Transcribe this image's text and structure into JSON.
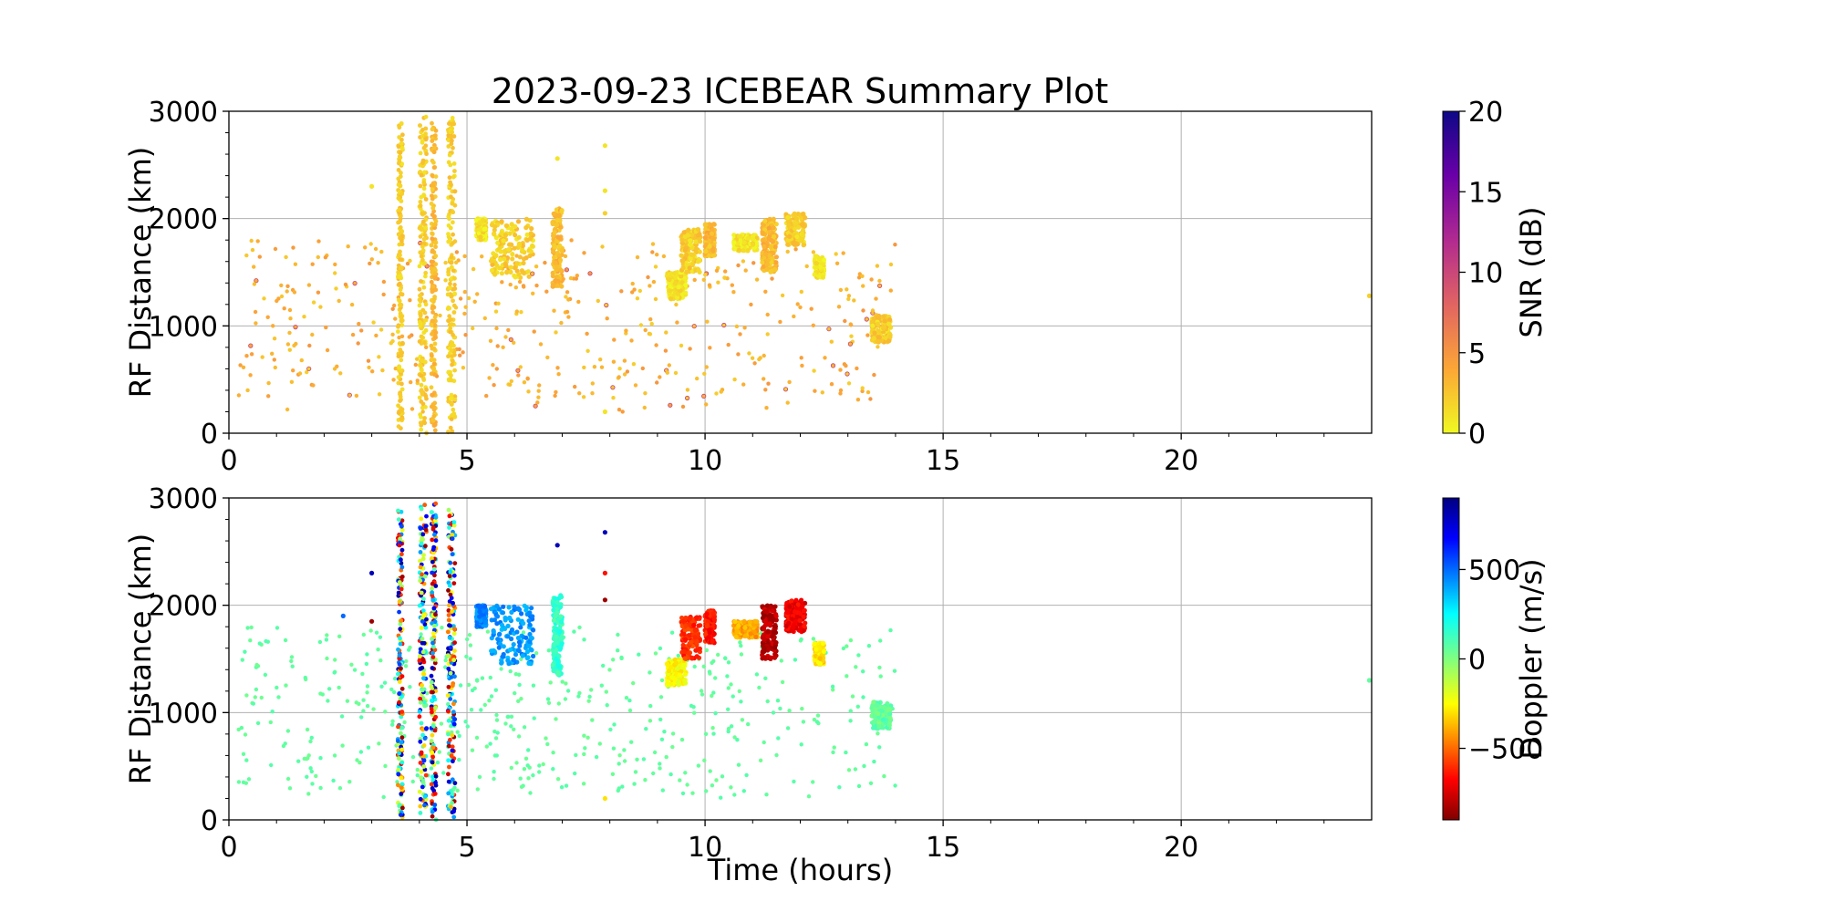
{
  "chart_data": [
    {
      "type": "scatter",
      "panel": "top",
      "title": "2023-09-23 ICEBEAR Summary Plot",
      "xlabel": "",
      "ylabel": "RF Distance (km)",
      "xlim": [
        0,
        24
      ],
      "ylim": [
        0,
        3000
      ],
      "xticks": [
        "0",
        "5",
        "10",
        "15",
        "20"
      ],
      "yticks": [
        "0",
        "1000",
        "2000",
        "3000"
      ],
      "grid": true,
      "color_variable": "SNR",
      "colorbar": {
        "label": "SNR (dB)",
        "range": [
          0,
          20
        ],
        "ticks": [
          "0",
          "5",
          "10",
          "15",
          "20"
        ],
        "colormap": "plasma_r"
      },
      "clusters": [
        {
          "x": [
            3.55,
            3.65
          ],
          "y": [
            0,
            2900
          ],
          "value": 1
        },
        {
          "x": [
            4.0,
            4.15
          ],
          "y": [
            0,
            2950
          ],
          "value": 1
        },
        {
          "x": [
            4.25,
            4.35
          ],
          "y": [
            0,
            2950
          ],
          "value": 2
        },
        {
          "x": [
            4.6,
            4.75
          ],
          "y": [
            0,
            2950
          ],
          "value": 1
        },
        {
          "x": [
            5.2,
            5.4
          ],
          "y": [
            1800,
            2000
          ],
          "value": 1
        },
        {
          "x": [
            5.5,
            6.4
          ],
          "y": [
            1450,
            2000
          ],
          "value": 2
        },
        {
          "x": [
            6.8,
            7.0
          ],
          "y": [
            1350,
            2100
          ],
          "value": 3
        },
        {
          "x": [
            9.2,
            9.6
          ],
          "y": [
            1250,
            1500
          ],
          "value": 1
        },
        {
          "x": [
            9.5,
            9.9
          ],
          "y": [
            1500,
            1900
          ],
          "value": 2
        },
        {
          "x": [
            10.0,
            10.2
          ],
          "y": [
            1650,
            1950
          ],
          "value": 3
        },
        {
          "x": [
            10.6,
            11.1
          ],
          "y": [
            1700,
            1850
          ],
          "value": 1
        },
        {
          "x": [
            11.2,
            11.5
          ],
          "y": [
            1500,
            2000
          ],
          "value": 3
        },
        {
          "x": [
            11.7,
            12.1
          ],
          "y": [
            1750,
            2050
          ],
          "value": 2
        },
        {
          "x": [
            12.3,
            12.5
          ],
          "y": [
            1450,
            1650
          ],
          "value": 1
        },
        {
          "x": [
            13.5,
            13.9
          ],
          "y": [
            850,
            1100
          ],
          "value": 2
        }
      ],
      "background_scatter": {
        "x_range": [
          0.2,
          14.0
        ],
        "y_range": [
          200,
          1800
        ],
        "value": 3
      },
      "isolated_points": [
        {
          "x": 3.0,
          "y": 2300,
          "value": 1
        },
        {
          "x": 6.9,
          "y": 2560,
          "value": 1
        },
        {
          "x": 7.9,
          "y": 2680,
          "value": 1
        },
        {
          "x": 7.9,
          "y": 2260,
          "value": 1
        },
        {
          "x": 7.9,
          "y": 2050,
          "value": 2
        },
        {
          "x": 7.9,
          "y": 200,
          "value": 1
        },
        {
          "x": 23.95,
          "y": 1280,
          "value": 2
        }
      ]
    },
    {
      "type": "scatter",
      "panel": "bottom",
      "title": "",
      "xlabel": "Time (hours)",
      "ylabel": "RF Distance (km)",
      "xlim": [
        0,
        24
      ],
      "ylim": [
        0,
        3000
      ],
      "xticks": [
        "0",
        "5",
        "10",
        "15",
        "20"
      ],
      "yticks": [
        "0",
        "1000",
        "2000",
        "3000"
      ],
      "grid": true,
      "color_variable": "Doppler",
      "colorbar": {
        "label": "Doppler (m/s)",
        "range": [
          -900,
          900
        ],
        "ticks": [
          "−500",
          "0",
          "500"
        ],
        "tick_values": [
          -500,
          0,
          500
        ],
        "colormap": "jet_r"
      },
      "clusters": [
        {
          "x": [
            5.2,
            5.4
          ],
          "y": [
            1800,
            2000
          ],
          "value": 450
        },
        {
          "x": [
            5.5,
            6.4
          ],
          "y": [
            1450,
            2000
          ],
          "value": 420
        },
        {
          "x": [
            6.8,
            7.0
          ],
          "y": [
            1350,
            2100
          ],
          "value": 150
        },
        {
          "x": [
            9.2,
            9.6
          ],
          "y": [
            1250,
            1500
          ],
          "value": -250
        },
        {
          "x": [
            9.5,
            9.9
          ],
          "y": [
            1500,
            1900
          ],
          "value": -600
        },
        {
          "x": [
            10.0,
            10.2
          ],
          "y": [
            1650,
            1950
          ],
          "value": -650
        },
        {
          "x": [
            10.6,
            11.1
          ],
          "y": [
            1700,
            1850
          ],
          "value": -400
        },
        {
          "x": [
            11.2,
            11.5
          ],
          "y": [
            1500,
            2000
          ],
          "value": -800
        },
        {
          "x": [
            11.7,
            12.1
          ],
          "y": [
            1750,
            2050
          ],
          "value": -700
        },
        {
          "x": [
            12.3,
            12.5
          ],
          "y": [
            1450,
            1650
          ],
          "value": -300
        },
        {
          "x": [
            13.5,
            13.9
          ],
          "y": [
            850,
            1100
          ],
          "value": 60
        }
      ],
      "mixed_columns": [
        {
          "x": [
            3.55,
            3.65
          ],
          "y": [
            0,
            2900
          ]
        },
        {
          "x": [
            4.0,
            4.15
          ],
          "y": [
            0,
            2950
          ]
        },
        {
          "x": [
            4.25,
            4.35
          ],
          "y": [
            0,
            2950
          ]
        },
        {
          "x": [
            4.6,
            4.75
          ],
          "y": [
            0,
            2950
          ]
        }
      ],
      "background_scatter": {
        "x_range": [
          0.2,
          14.0
        ],
        "y_range": [
          200,
          1800
        ],
        "value": 60
      },
      "isolated_points": [
        {
          "x": 3.0,
          "y": 2300,
          "value": 800
        },
        {
          "x": 3.0,
          "y": 1850,
          "value": -850
        },
        {
          "x": 2.4,
          "y": 1900,
          "value": 500
        },
        {
          "x": 6.9,
          "y": 2560,
          "value": 800
        },
        {
          "x": 7.9,
          "y": 2680,
          "value": 800
        },
        {
          "x": 7.9,
          "y": 2300,
          "value": -650
        },
        {
          "x": 7.9,
          "y": 2050,
          "value": -850
        },
        {
          "x": 7.9,
          "y": 200,
          "value": -300
        },
        {
          "x": 23.95,
          "y": 1300,
          "value": 60
        }
      ]
    }
  ]
}
